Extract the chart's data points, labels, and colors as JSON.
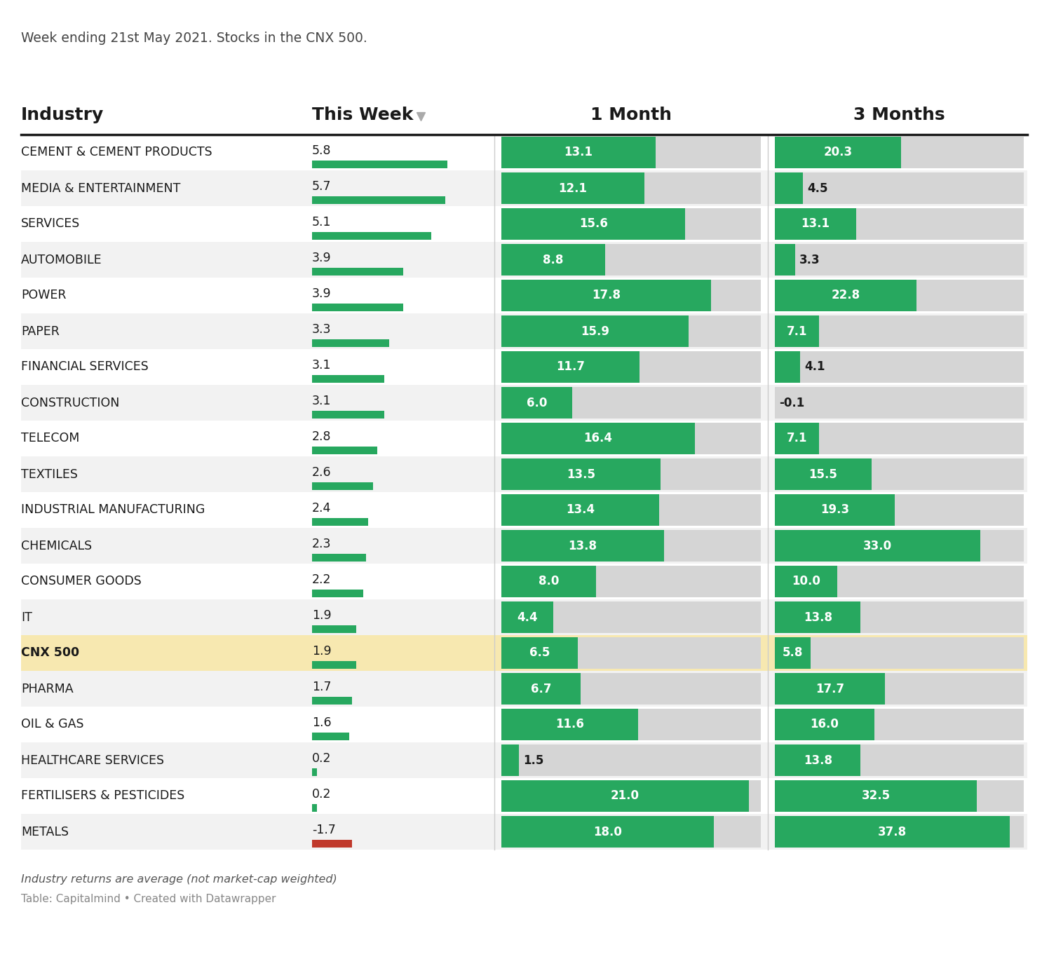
{
  "subtitle": "Week ending 21st May 2021. Stocks in the CNX 500.",
  "footer1": "Industry returns are average (not market-cap weighted)",
  "footer2": "Table: Capitalmind • Created with Datawrapper",
  "rows": [
    {
      "label": "CEMENT & CEMENT PRODUCTS",
      "week": 5.8,
      "month": 13.1,
      "three": 20.3,
      "highlight": false
    },
    {
      "label": "MEDIA & ENTERTAINMENT",
      "week": 5.7,
      "month": 12.1,
      "three": 4.5,
      "highlight": false
    },
    {
      "label": "SERVICES",
      "week": 5.1,
      "month": 15.6,
      "three": 13.1,
      "highlight": false
    },
    {
      "label": "AUTOMOBILE",
      "week": 3.9,
      "month": 8.8,
      "three": 3.3,
      "highlight": false
    },
    {
      "label": "POWER",
      "week": 3.9,
      "month": 17.8,
      "three": 22.8,
      "highlight": false
    },
    {
      "label": "PAPER",
      "week": 3.3,
      "month": 15.9,
      "three": 7.1,
      "highlight": false
    },
    {
      "label": "FINANCIAL SERVICES",
      "week": 3.1,
      "month": 11.7,
      "three": 4.1,
      "highlight": false
    },
    {
      "label": "CONSTRUCTION",
      "week": 3.1,
      "month": 6.0,
      "three": -0.1,
      "highlight": false
    },
    {
      "label": "TELECOM",
      "week": 2.8,
      "month": 16.4,
      "three": 7.1,
      "highlight": false
    },
    {
      "label": "TEXTILES",
      "week": 2.6,
      "month": 13.5,
      "three": 15.5,
      "highlight": false
    },
    {
      "label": "INDUSTRIAL MANUFACTURING",
      "week": 2.4,
      "month": 13.4,
      "three": 19.3,
      "highlight": false
    },
    {
      "label": "CHEMICALS",
      "week": 2.3,
      "month": 13.8,
      "three": 33.0,
      "highlight": false
    },
    {
      "label": "CONSUMER GOODS",
      "week": 2.2,
      "month": 8.0,
      "three": 10.0,
      "highlight": false
    },
    {
      "label": "IT",
      "week": 1.9,
      "month": 4.4,
      "three": 13.8,
      "highlight": false
    },
    {
      "label": "CNX 500",
      "week": 1.9,
      "month": 6.5,
      "three": 5.8,
      "highlight": true
    },
    {
      "label": "PHARMA",
      "week": 1.7,
      "month": 6.7,
      "three": 17.7,
      "highlight": false
    },
    {
      "label": "OIL & GAS",
      "week": 1.6,
      "month": 11.6,
      "three": 16.0,
      "highlight": false
    },
    {
      "label": "HEALTHCARE SERVICES",
      "week": 0.2,
      "month": 1.5,
      "three": 13.8,
      "highlight": false
    },
    {
      "label": "FERTILISERS & PESTICIDES",
      "week": 0.2,
      "month": 21.0,
      "three": 32.5,
      "highlight": false
    },
    {
      "label": "METALS",
      "week": -1.7,
      "month": 18.0,
      "three": 37.8,
      "highlight": false
    }
  ],
  "green_color": "#27a85f",
  "red_color": "#c0392b",
  "highlight_bg": "#f7e8b0",
  "row_bg_odd": "#f2f2f2",
  "row_bg_even": "#ffffff",
  "bar_bg": "#d5d5d5",
  "header_line_color": "#1a1a1a",
  "text_dark": "#1a1a1a",
  "text_mid": "#444444",
  "text_light": "#888888",
  "max_week": 6.0,
  "max_month": 22.0,
  "max_three": 40.0
}
